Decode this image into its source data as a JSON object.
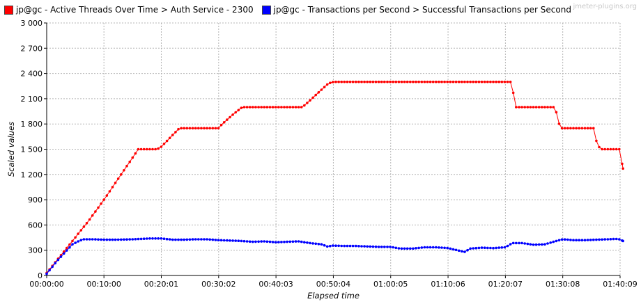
{
  "legend": {
    "items": [
      {
        "label": "jp@gc - Active Threads Over Time > Auth Service - 2300",
        "color": "#ff0000"
      },
      {
        "label": "jp@gc - Transactions per Second > Successful Transactions per Second",
        "color": "#0000ff"
      }
    ]
  },
  "watermark": "jmeter-plugins.org",
  "chart_data": {
    "type": "line",
    "title": "",
    "xlabel": "Elapsed time",
    "ylabel": "Scaled values",
    "xlim_seconds": [
      0,
      6009
    ],
    "ylim": [
      0,
      3000
    ],
    "yticks": [
      0,
      300,
      600,
      900,
      1200,
      1500,
      1800,
      2100,
      2400,
      2700,
      3000
    ],
    "ytick_labels": [
      "0",
      "300",
      "600",
      "900",
      "1 200",
      "1 500",
      "1 800",
      "2 100",
      "2 400",
      "2 700",
      "3 000"
    ],
    "xticks_seconds": [
      0,
      600,
      1201,
      1802,
      2403,
      3004,
      3605,
      4206,
      4807,
      5408,
      6009
    ],
    "xtick_labels": [
      "00:00:00",
      "00:10:00",
      "00:20:01",
      "00:30:02",
      "00:40:03",
      "00:50:04",
      "01:00:05",
      "01:10:06",
      "01:20:07",
      "01:30:08",
      "01:40:09"
    ],
    "grid": true,
    "legend_position": "top",
    "series": [
      {
        "name": "jp@gc - Active Threads Over Time > Auth Service - 2300",
        "color": "#ff0000",
        "points": [
          [
            0,
            30
          ],
          [
            270,
            410
          ],
          [
            440,
            650
          ],
          [
            600,
            900
          ],
          [
            780,
            1200
          ],
          [
            900,
            1400
          ],
          [
            960,
            1500
          ],
          [
            1160,
            1500
          ],
          [
            1201,
            1530
          ],
          [
            1390,
            1750
          ],
          [
            1800,
            1750
          ],
          [
            1840,
            1800
          ],
          [
            1960,
            1920
          ],
          [
            2050,
            2000
          ],
          [
            2680,
            2000
          ],
          [
            2740,
            2060
          ],
          [
            2950,
            2280
          ],
          [
            3004,
            2300
          ],
          [
            4860,
            2300
          ],
          [
            4890,
            2170
          ],
          [
            4920,
            2000
          ],
          [
            5330,
            2000
          ],
          [
            5360,
            1820
          ],
          [
            5400,
            1750
          ],
          [
            5730,
            1750
          ],
          [
            5760,
            1600
          ],
          [
            5800,
            1500
          ],
          [
            6000,
            1500
          ],
          [
            6040,
            1270
          ]
        ]
      },
      {
        "name": "jp@gc - Transactions per Second > Successful Transactions per Second",
        "color": "#0000ff",
        "points": [
          [
            0,
            20
          ],
          [
            100,
            160
          ],
          [
            180,
            260
          ],
          [
            270,
            370
          ],
          [
            320,
            400
          ],
          [
            380,
            430
          ],
          [
            480,
            430
          ],
          [
            600,
            425
          ],
          [
            720,
            425
          ],
          [
            900,
            430
          ],
          [
            1080,
            440
          ],
          [
            1201,
            440
          ],
          [
            1320,
            425
          ],
          [
            1440,
            425
          ],
          [
            1560,
            430
          ],
          [
            1680,
            430
          ],
          [
            1802,
            420
          ],
          [
            1920,
            415
          ],
          [
            2040,
            410
          ],
          [
            2160,
            400
          ],
          [
            2280,
            405
          ],
          [
            2403,
            395
          ],
          [
            2520,
            400
          ],
          [
            2640,
            405
          ],
          [
            2760,
            385
          ],
          [
            2880,
            370
          ],
          [
            2940,
            345
          ],
          [
            3004,
            355
          ],
          [
            3120,
            350
          ],
          [
            3240,
            350
          ],
          [
            3360,
            345
          ],
          [
            3480,
            340
          ],
          [
            3605,
            340
          ],
          [
            3700,
            320
          ],
          [
            3840,
            320
          ],
          [
            3960,
            335
          ],
          [
            4080,
            335
          ],
          [
            4206,
            325
          ],
          [
            4320,
            295
          ],
          [
            4380,
            280
          ],
          [
            4440,
            320
          ],
          [
            4560,
            330
          ],
          [
            4680,
            325
          ],
          [
            4807,
            335
          ],
          [
            4880,
            385
          ],
          [
            4980,
            385
          ],
          [
            5100,
            365
          ],
          [
            5220,
            370
          ],
          [
            5340,
            410
          ],
          [
            5408,
            430
          ],
          [
            5520,
            420
          ],
          [
            5640,
            420
          ],
          [
            5760,
            425
          ],
          [
            5880,
            430
          ],
          [
            5990,
            435
          ],
          [
            6040,
            410
          ]
        ]
      }
    ]
  }
}
